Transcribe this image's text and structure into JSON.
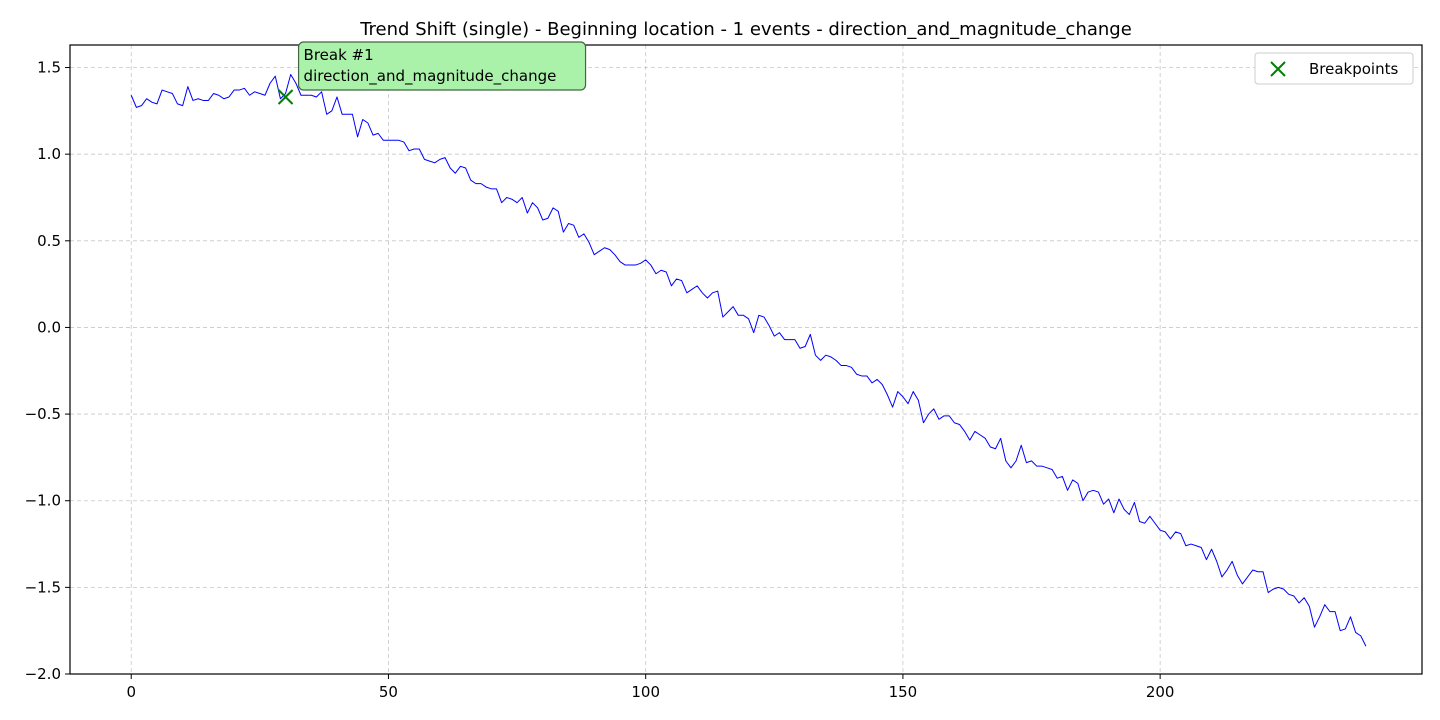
{
  "chart_data": {
    "type": "line",
    "title": "Trend Shift (single) - Beginning location - 1 events - direction_and_magnitude_change",
    "xlabel": "",
    "ylabel": "",
    "xlim": [
      -11.9,
      250.9
    ],
    "ylim": [
      -2.0,
      1.63
    ],
    "xticks": [
      0,
      50,
      100,
      150,
      200
    ],
    "yticks": [
      -2.0,
      -1.5,
      -1.0,
      -0.5,
      0.0,
      0.5,
      1.0,
      1.5
    ],
    "xtick_labels": [
      "0",
      "50",
      "100",
      "150",
      "200"
    ],
    "ytick_labels": [
      "−2.0",
      "−1.5",
      "−1.0",
      "−0.5",
      "0.0",
      "0.5",
      "1.0",
      "1.5"
    ],
    "grid": true,
    "legend_placement": "top-right",
    "series": [
      {
        "color": "#0000ff",
        "x_start": 0,
        "x_step": 1,
        "values": [
          1.34,
          1.27,
          1.28,
          1.32,
          1.3,
          1.29,
          1.37,
          1.36,
          1.35,
          1.29,
          1.28,
          1.39,
          1.31,
          1.32,
          1.31,
          1.31,
          1.35,
          1.34,
          1.32,
          1.33,
          1.37,
          1.37,
          1.38,
          1.34,
          1.36,
          1.35,
          1.34,
          1.41,
          1.45,
          1.32,
          1.35,
          1.46,
          1.41,
          1.34,
          1.34,
          1.34,
          1.33,
          1.36,
          1.23,
          1.25,
          1.33,
          1.23,
          1.23,
          1.23,
          1.1,
          1.2,
          1.18,
          1.11,
          1.12,
          1.08,
          1.08,
          1.08,
          1.08,
          1.07,
          1.02,
          1.03,
          1.03,
          0.97,
          0.96,
          0.95,
          0.97,
          0.98,
          0.92,
          0.89,
          0.93,
          0.92,
          0.85,
          0.83,
          0.83,
          0.81,
          0.8,
          0.8,
          0.72,
          0.75,
          0.74,
          0.72,
          0.75,
          0.66,
          0.72,
          0.69,
          0.62,
          0.63,
          0.69,
          0.67,
          0.55,
          0.6,
          0.59,
          0.52,
          0.54,
          0.49,
          0.42,
          0.44,
          0.46,
          0.45,
          0.42,
          0.38,
          0.36,
          0.36,
          0.36,
          0.37,
          0.39,
          0.36,
          0.31,
          0.33,
          0.32,
          0.24,
          0.28,
          0.27,
          0.2,
          0.22,
          0.24,
          0.2,
          0.17,
          0.2,
          0.21,
          0.06,
          0.09,
          0.12,
          0.07,
          0.07,
          0.05,
          -0.03,
          0.07,
          0.06,
          0.01,
          -0.05,
          -0.03,
          -0.07,
          -0.07,
          -0.07,
          -0.12,
          -0.11,
          -0.04,
          -0.16,
          -0.19,
          -0.16,
          -0.17,
          -0.19,
          -0.22,
          -0.22,
          -0.23,
          -0.27,
          -0.28,
          -0.28,
          -0.32,
          -0.3,
          -0.33,
          -0.39,
          -0.46,
          -0.37,
          -0.4,
          -0.44,
          -0.37,
          -0.42,
          -0.55,
          -0.5,
          -0.47,
          -0.53,
          -0.51,
          -0.51,
          -0.55,
          -0.56,
          -0.6,
          -0.65,
          -0.6,
          -0.62,
          -0.64,
          -0.69,
          -0.7,
          -0.64,
          -0.77,
          -0.81,
          -0.77,
          -0.68,
          -0.78,
          -0.77,
          -0.8,
          -0.8,
          -0.81,
          -0.82,
          -0.87,
          -0.86,
          -0.94,
          -0.88,
          -0.9,
          -1.0,
          -0.95,
          -0.94,
          -0.95,
          -1.02,
          -0.99,
          -1.07,
          -0.99,
          -1.05,
          -1.08,
          -1.01,
          -1.12,
          -1.13,
          -1.09,
          -1.13,
          -1.17,
          -1.18,
          -1.22,
          -1.18,
          -1.19,
          -1.26,
          -1.25,
          -1.26,
          -1.27,
          -1.34,
          -1.28,
          -1.35,
          -1.44,
          -1.4,
          -1.35,
          -1.43,
          -1.48,
          -1.44,
          -1.4,
          -1.41,
          -1.41,
          -1.53,
          -1.51,
          -1.5,
          -1.51,
          -1.54,
          -1.55,
          -1.59,
          -1.56,
          -1.61,
          -1.73,
          -1.67,
          -1.6,
          -1.64,
          -1.64,
          -1.75,
          -1.74,
          -1.67,
          -1.76,
          -1.78,
          -1.84
        ]
      }
    ],
    "breakpoints": {
      "name": "Breakpoints",
      "color": "#008000",
      "points": [
        {
          "x": 30,
          "y": 1.33
        }
      ]
    },
    "annotations": [
      {
        "lines": [
          "Break #1",
          "direction_and_magnitude_change"
        ],
        "x": 30,
        "y": 1.33,
        "background": "#aaf2aa",
        "border": "#446644"
      }
    ]
  }
}
